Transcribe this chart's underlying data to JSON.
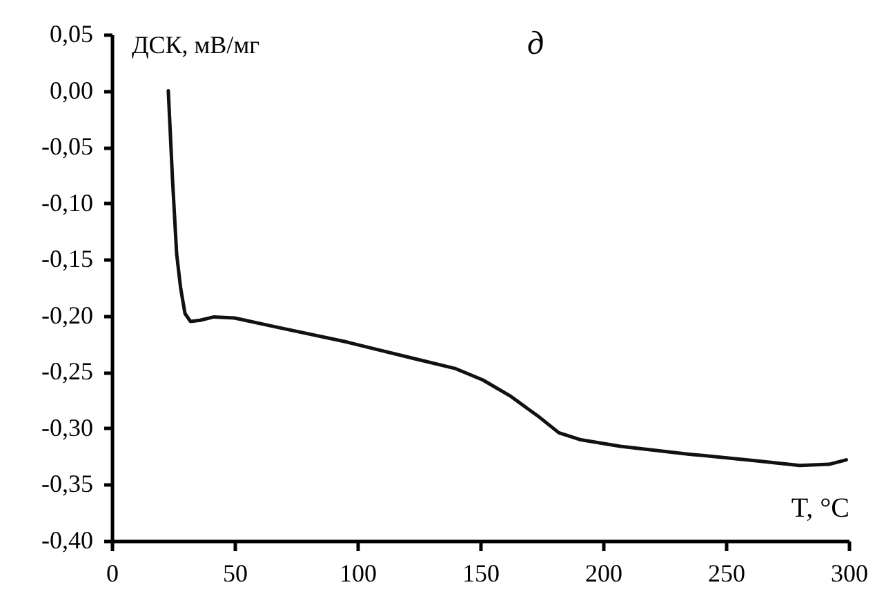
{
  "chart_data": {
    "type": "line",
    "title": "д",
    "xlabel": "T, °C",
    "ylabel": "ДСК, мВ/мг",
    "x": [
      23,
      24.7,
      26.4,
      28,
      29.8,
      32,
      36,
      41.6,
      50,
      67,
      95,
      123,
      140,
      151,
      162,
      174,
      182,
      190.5,
      207,
      235,
      263,
      280,
      292,
      299
    ],
    "series": [
      {
        "color": "#111111",
        "values": [
          0.0,
          -0.078,
          -0.145,
          -0.175,
          -0.198,
          -0.205,
          -0.204,
          -0.201,
          -0.202,
          -0.21,
          -0.223,
          -0.238,
          -0.247,
          -0.257,
          -0.271,
          -0.29,
          -0.304,
          -0.31,
          -0.316,
          -0.323,
          -0.329,
          -0.333,
          -0.332,
          -0.328
        ]
      }
    ],
    "xlim": [
      0,
      300
    ],
    "xticks": [
      0,
      50,
      100,
      150,
      200,
      250,
      300
    ],
    "ylim": [
      -0.4,
      0.05
    ],
    "yticks": [
      {
        "value": 0.05,
        "label": "0,05"
      },
      {
        "value": 0,
        "label": "0,00"
      },
      {
        "value": -0.05,
        "label": "-0,05"
      },
      {
        "value": -0.1,
        "label": "-0,10"
      },
      {
        "value": -0.15,
        "label": "-0,15"
      },
      {
        "value": -0.2,
        "label": "-0,20"
      },
      {
        "value": -0.25,
        "label": "-0,25"
      },
      {
        "value": -0.3,
        "label": "-0,30"
      },
      {
        "value": -0.35,
        "label": "-0,35"
      },
      {
        "value": -0.4,
        "label": "-0,40"
      }
    ],
    "grid": false,
    "legend": false,
    "marker": "none",
    "line_style": "solid"
  }
}
